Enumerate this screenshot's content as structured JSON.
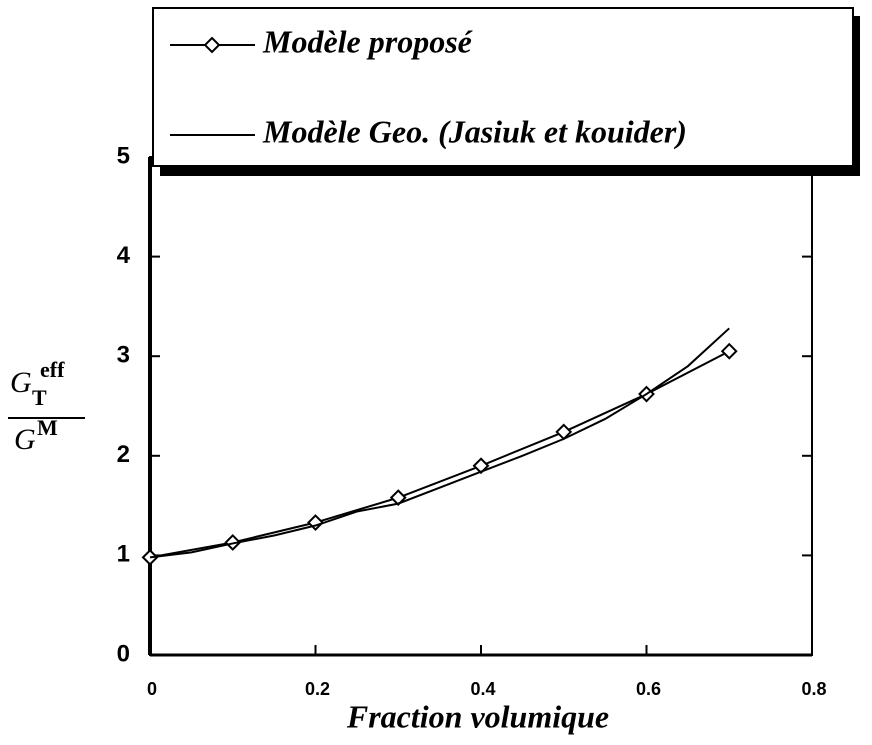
{
  "chart_data": {
    "type": "line",
    "xlabel": "Fraction volumique",
    "ylabel": {
      "numerator": {
        "base": "G",
        "sub": "T",
        "sup": "eff"
      },
      "denominator": {
        "base": "G",
        "sup": "M"
      }
    },
    "xlim": [
      0,
      0.8
    ],
    "xticks": [
      0,
      0.2,
      0.4,
      0.6,
      0.8
    ],
    "ylim": [
      0,
      5
    ],
    "yticks": [
      0,
      1,
      2,
      3,
      4,
      5
    ],
    "legend": "top",
    "series": [
      {
        "name": "Modèle proposé",
        "color": "#000000",
        "marker": "diamond",
        "x": [
          0,
          0.1,
          0.2,
          0.3,
          0.4,
          0.5,
          0.6,
          0.7
        ],
        "values": [
          0.98,
          1.13,
          1.33,
          1.58,
          1.9,
          2.24,
          2.62,
          3.05
        ]
      },
      {
        "name": "Modèle Geo. (Jasiuk et kouider)",
        "color": "#000000",
        "x": [
          0,
          0.05,
          0.1,
          0.15,
          0.2,
          0.25,
          0.3,
          0.35,
          0.4,
          0.45,
          0.5,
          0.55,
          0.6,
          0.65,
          0.7
        ],
        "values": [
          0.98,
          1.03,
          1.12,
          1.2,
          1.3,
          1.44,
          1.52,
          1.68,
          1.84,
          2.0,
          2.17,
          2.37,
          2.62,
          2.9,
          3.28
        ]
      }
    ]
  }
}
